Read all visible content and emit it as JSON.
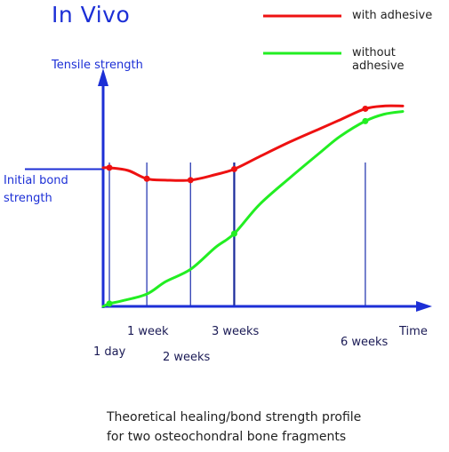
{
  "chart_data": {
    "type": "line",
    "title": "In Vivo",
    "ylabel": "Tensile strength",
    "xlabel": "Time",
    "reference_label": "Initial bond strength",
    "caption_lines": [
      "Theoretical healing/bond strength profile",
      "for two osteochondral bone fragments"
    ],
    "x_ticks": [
      {
        "label": "1 day",
        "x": 1
      },
      {
        "label": "1 week",
        "x": 7
      },
      {
        "label": "2 weeks",
        "x": 14
      },
      {
        "label": "3 weeks",
        "x": 21
      },
      {
        "label": "6 weeks",
        "x": 42
      }
    ],
    "xlim": [
      0,
      48
    ],
    "ylim": [
      0,
      1.65
    ],
    "reference_value": 1.0,
    "legend_position": "top-right",
    "series": [
      {
        "name": "with adhesive",
        "color": "#ee1111",
        "x": [
          0,
          1,
          4,
          7,
          10,
          14,
          18,
          21,
          25,
          30,
          35,
          38,
          42,
          45,
          48
        ],
        "y": [
          1.01,
          1.01,
          0.99,
          0.93,
          0.92,
          0.92,
          0.96,
          1.0,
          1.09,
          1.2,
          1.3,
          1.36,
          1.44,
          1.46,
          1.46
        ],
        "markers_at": [
          1,
          7,
          14,
          21,
          42
        ]
      },
      {
        "name": "without adhesive",
        "color": "#22ee22",
        "x": [
          0,
          1,
          3,
          7,
          10,
          14,
          18,
          21,
          25,
          30,
          35,
          38,
          42,
          45,
          48
        ],
        "y": [
          0.0,
          0.02,
          0.04,
          0.09,
          0.18,
          0.27,
          0.43,
          0.53,
          0.74,
          0.94,
          1.13,
          1.24,
          1.35,
          1.4,
          1.42
        ],
        "markers_at": [
          1,
          21,
          42
        ]
      }
    ]
  }
}
